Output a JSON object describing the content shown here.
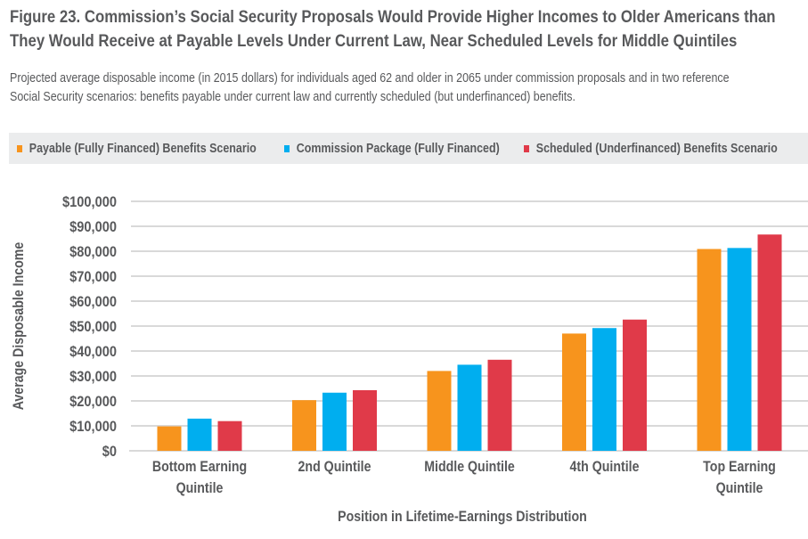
{
  "figure": {
    "title_line1": "Figure 23. Commission’s Social Security Proposals Would Provide Higher Incomes to Older Americans than",
    "title_line2": "They Would Receive at Payable Levels Under Current Law, Near Scheduled Levels for Middle Quintiles",
    "subtitle_line1": "Projected average disposable income (in 2015 dollars) for individuals aged 62 and older in 2065 under commission proposals and in two reference",
    "subtitle_line2": "Social Security scenarios: benefits payable under current law and currently scheduled (but underfinanced) benefits."
  },
  "chart_data": {
    "type": "bar",
    "title": "Figure 23. Commission’s Social Security Proposals Would Provide Higher Incomes to Older Americans than They Would Receive at Payable Levels Under Current Law, Near Scheduled Levels for Middle Quintiles",
    "xlabel": "Position in Lifetime-Earnings Distribution",
    "ylabel": "Average Disposable Income",
    "ylim": [
      0,
      100000
    ],
    "yticks": [
      0,
      10000,
      20000,
      30000,
      40000,
      50000,
      60000,
      70000,
      80000,
      90000,
      100000
    ],
    "ytick_labels": [
      "$0",
      "$10,000",
      "$20,000",
      "$30,000",
      "$40,000",
      "$50,000",
      "$60,000",
      "$70,000",
      "$80,000",
      "$90,000",
      "$100,000"
    ],
    "grid": true,
    "legend_position": "top",
    "categories": [
      [
        "Bottom Earning",
        "Quintile"
      ],
      [
        "2nd Quintile"
      ],
      [
        "Middle Quintile"
      ],
      [
        "4th Quintile"
      ],
      [
        "Top Earning",
        "Quintile"
      ]
    ],
    "series": [
      {
        "name": "Payable (Fully Financed) Benefits Scenario",
        "color": "#f7941d",
        "values": [
          9800,
          20300,
          32000,
          47000,
          80900
        ]
      },
      {
        "name": "Commission Package (Fully Financed)",
        "color": "#00aeef",
        "values": [
          12900,
          23300,
          34500,
          49200,
          81300
        ]
      },
      {
        "name": "Scheduled (Underfinanced) Benefits Scenario",
        "color": "#e03a49",
        "values": [
          11900,
          24300,
          36500,
          52600,
          86700
        ]
      }
    ]
  }
}
